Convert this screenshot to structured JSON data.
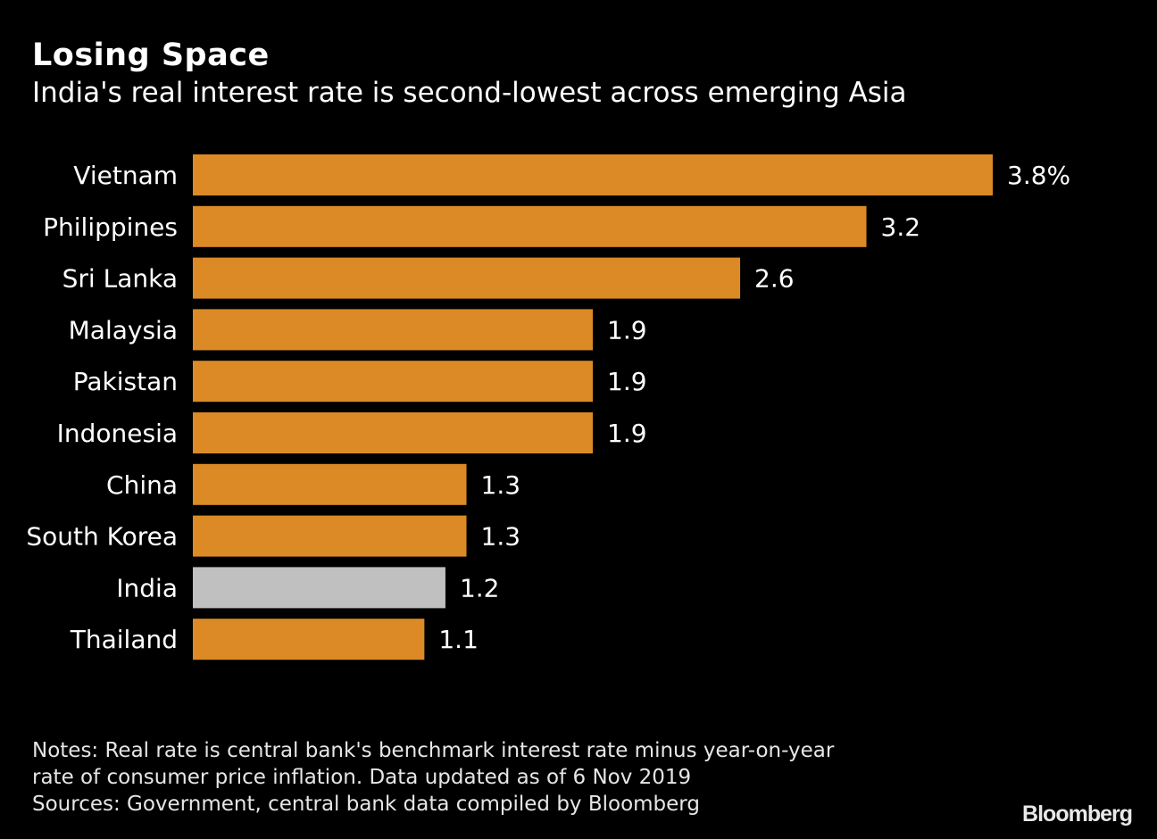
{
  "header": {
    "title": "Losing Space",
    "subtitle": "India's real interest rate is second-lowest across emerging Asia"
  },
  "chart_data": {
    "type": "bar",
    "orientation": "horizontal",
    "title": "Losing Space",
    "subtitle": "India's real interest rate is second-lowest across emerging Asia",
    "xlabel": "",
    "ylabel": "",
    "unit": "%",
    "categories": [
      "Vietnam",
      "Philippines",
      "Sri Lanka",
      "Malaysia",
      "Pakistan",
      "Indonesia",
      "China",
      "South Korea",
      "India",
      "Thailand"
    ],
    "values": [
      3.8,
      3.2,
      2.6,
      1.9,
      1.9,
      1.9,
      1.3,
      1.3,
      1.2,
      1.1
    ],
    "value_labels": [
      "3.8%",
      "3.2",
      "2.6",
      "1.9",
      "1.9",
      "1.9",
      "1.3",
      "1.3",
      "1.2",
      "1.1"
    ],
    "highlight": "India",
    "colors": {
      "default": "#dc8a26",
      "highlight": "#c0c0c0",
      "background": "#000000",
      "text": "#ffffff"
    },
    "xlim": [
      0,
      3.8
    ],
    "grid": false,
    "legend": "none"
  },
  "footer": {
    "notes_line1": "Notes: Real rate is central bank's benchmark interest rate minus year-on-year",
    "notes_line2": "rate of consumer price inflation. Data updated as of 6 Nov 2019",
    "sources": "Sources: Government, central bank data compiled by Bloomberg",
    "logo": "Bloomberg"
  }
}
